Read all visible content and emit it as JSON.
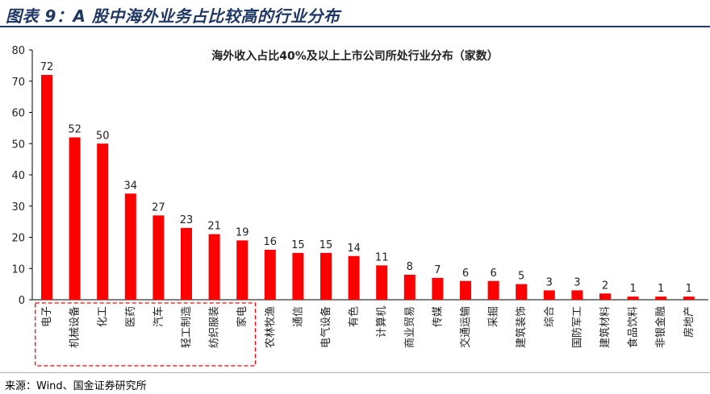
{
  "header": {
    "title": "图表 9：A 股中海外业务占比较高的行业分布"
  },
  "footer": {
    "source": "来源：Wind、国金证券研究所"
  },
  "colors": {
    "bar": "#ff0000",
    "axis": "#000000",
    "highlight_box": "#ff0000",
    "title_bar": "#1f3864"
  },
  "chart_data": {
    "type": "bar",
    "title": "海外收入占比40%及以上上市公司所处行业分布（家数）",
    "xlabel": "",
    "ylabel": "",
    "ylim": [
      0,
      80
    ],
    "yticks": [
      0,
      10,
      20,
      30,
      40,
      50,
      60,
      70,
      80
    ],
    "grid": false,
    "legend": "none",
    "categories": [
      "电子",
      "机械设备",
      "化工",
      "医药",
      "汽车",
      "轻工制造",
      "纺织服装",
      "家电",
      "农林牧渔",
      "通信",
      "电气设备",
      "有色",
      "计算机",
      "商业贸易",
      "传媒",
      "交通运输",
      "采掘",
      "建筑装饰",
      "综合",
      "国防军工",
      "建筑材料",
      "食品饮料",
      "非银金融",
      "房地产"
    ],
    "values": [
      72,
      52,
      50,
      34,
      27,
      23,
      21,
      19,
      16,
      15,
      15,
      14,
      11,
      8,
      7,
      6,
      6,
      5,
      3,
      3,
      2,
      1,
      1,
      1
    ],
    "highlighted_categories": [
      "电子",
      "机械设备",
      "化工",
      "医药",
      "汽车",
      "轻工制造",
      "纺织服装",
      "家电"
    ]
  }
}
